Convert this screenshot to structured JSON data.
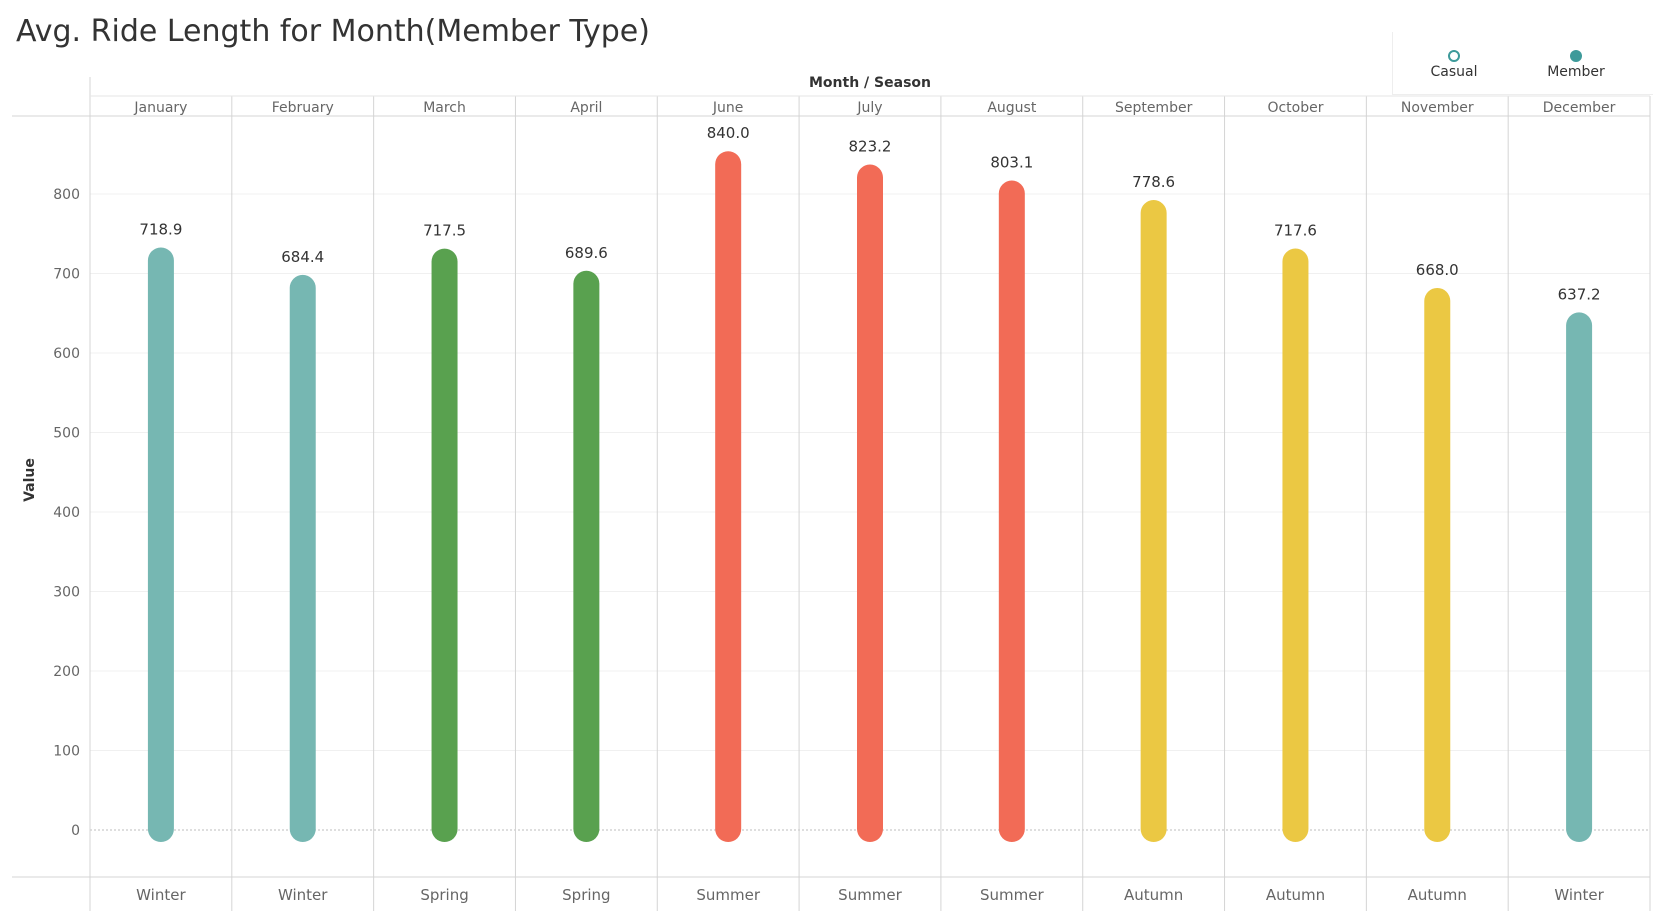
{
  "title": "Avg. Ride Length for Month(Member Type)",
  "legend": {
    "casual_label": "Casual",
    "member_label": "Member",
    "casual_color": "#3d9a9a",
    "member_color": "#3d9a9a"
  },
  "chart_data": {
    "type": "bar",
    "title": "Avg. Ride Length for Month(Member Type)",
    "column_header": "Month / Season",
    "ylabel": "Value",
    "ylim": [
      0,
      900
    ],
    "yticks": [
      0,
      100,
      200,
      300,
      400,
      500,
      600,
      700,
      800
    ],
    "categories": [
      "January",
      "February",
      "March",
      "April",
      "June",
      "July",
      "August",
      "September",
      "October",
      "November",
      "December"
    ],
    "seasons": [
      "Winter",
      "Winter",
      "Spring",
      "Spring",
      "Summer",
      "Summer",
      "Summer",
      "Autumn",
      "Autumn",
      "Autumn",
      "Winter"
    ],
    "values": [
      718.9,
      684.4,
      717.5,
      689.6,
      840.0,
      823.2,
      803.1,
      778.6,
      717.6,
      668.0,
      637.2
    ],
    "value_labels": [
      "718.9",
      "684.4",
      "717.5",
      "689.6",
      "840.0",
      "823.2",
      "803.1",
      "778.6",
      "717.6",
      "668.0",
      "637.2"
    ],
    "season_colors": {
      "Winter": "#76b7b2",
      "Spring": "#59a14f",
      "Summer": "#f26b56",
      "Autumn": "#ebc843"
    },
    "grid": true,
    "legend_position": "top-right"
  }
}
